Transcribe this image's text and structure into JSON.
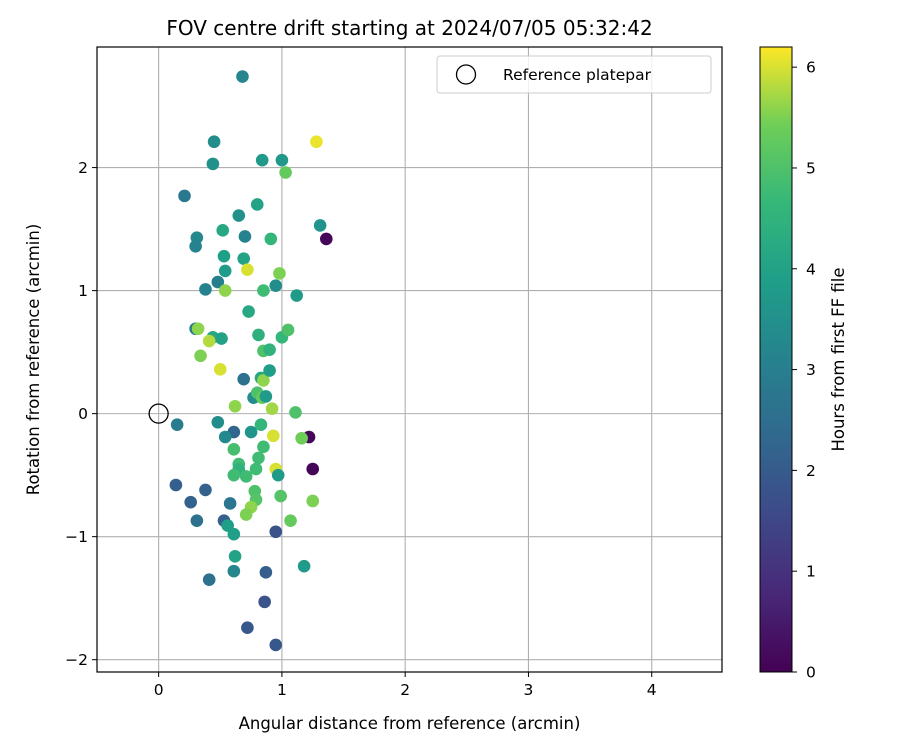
{
  "chart_data": {
    "type": "scatter",
    "title": "FOV centre drift starting at 2024/07/05 05:32:42",
    "xlabel": "Angular distance from reference (arcmin)",
    "ylabel": "Rotation from reference (arcmin)",
    "xlim": [
      -0.5,
      4.57
    ],
    "ylim": [
      -2.1,
      2.98
    ],
    "xticks": [
      0,
      1,
      2,
      3,
      4
    ],
    "yticks": [
      -2,
      -1,
      0,
      1,
      2
    ],
    "grid": true,
    "colormap": "viridis",
    "colorbar": {
      "label": "Hours from first FF file",
      "range": [
        0,
        6.2
      ],
      "ticks": [
        0,
        1,
        2,
        3,
        4,
        5,
        6
      ]
    },
    "legend": {
      "placement": "top-right",
      "entries": [
        {
          "label": "Reference platepar",
          "marker": "open-circle"
        }
      ]
    },
    "reference": {
      "x": 0.0,
      "y": 0.0
    },
    "points": [
      {
        "x": 0.68,
        "y": 2.74,
        "h": 3.2
      },
      {
        "x": 0.45,
        "y": 2.21,
        "h": 3.4
      },
      {
        "x": 1.28,
        "y": 2.21,
        "h": 6.1
      },
      {
        "x": 0.44,
        "y": 2.03,
        "h": 3.5
      },
      {
        "x": 0.84,
        "y": 2.06,
        "h": 3.8
      },
      {
        "x": 1.0,
        "y": 2.06,
        "h": 3.7
      },
      {
        "x": 1.03,
        "y": 1.96,
        "h": 5.3
      },
      {
        "x": 0.21,
        "y": 1.77,
        "h": 2.8
      },
      {
        "x": 0.8,
        "y": 1.7,
        "h": 4.0
      },
      {
        "x": 0.65,
        "y": 1.61,
        "h": 3.5
      },
      {
        "x": 1.31,
        "y": 1.53,
        "h": 3.6
      },
      {
        "x": 0.52,
        "y": 1.49,
        "h": 4.2
      },
      {
        "x": 0.31,
        "y": 1.43,
        "h": 3.3
      },
      {
        "x": 0.7,
        "y": 1.44,
        "h": 3.1
      },
      {
        "x": 0.91,
        "y": 1.42,
        "h": 4.6
      },
      {
        "x": 1.36,
        "y": 1.42,
        "h": 0.1
      },
      {
        "x": 0.3,
        "y": 1.36,
        "h": 3.1
      },
      {
        "x": 0.53,
        "y": 1.28,
        "h": 3.9
      },
      {
        "x": 0.69,
        "y": 1.26,
        "h": 4.0
      },
      {
        "x": 0.54,
        "y": 1.16,
        "h": 3.8
      },
      {
        "x": 0.72,
        "y": 1.17,
        "h": 6.0
      },
      {
        "x": 0.98,
        "y": 1.14,
        "h": 5.5
      },
      {
        "x": 0.48,
        "y": 1.07,
        "h": 3.0
      },
      {
        "x": 0.38,
        "y": 1.01,
        "h": 3.1
      },
      {
        "x": 0.54,
        "y": 1.0,
        "h": 5.6
      },
      {
        "x": 0.85,
        "y": 1.0,
        "h": 4.8
      },
      {
        "x": 0.95,
        "y": 1.04,
        "h": 3.4
      },
      {
        "x": 1.12,
        "y": 0.96,
        "h": 3.8
      },
      {
        "x": 0.73,
        "y": 0.83,
        "h": 4.2
      },
      {
        "x": 0.3,
        "y": 0.69,
        "h": 2.9
      },
      {
        "x": 0.32,
        "y": 0.69,
        "h": 5.6
      },
      {
        "x": 0.44,
        "y": 0.62,
        "h": 4.2
      },
      {
        "x": 0.51,
        "y": 0.61,
        "h": 4.0
      },
      {
        "x": 0.41,
        "y": 0.59,
        "h": 5.8
      },
      {
        "x": 0.81,
        "y": 0.64,
        "h": 4.4
      },
      {
        "x": 1.0,
        "y": 0.62,
        "h": 4.6
      },
      {
        "x": 1.05,
        "y": 0.68,
        "h": 5.0
      },
      {
        "x": 0.34,
        "y": 0.47,
        "h": 5.5
      },
      {
        "x": 0.85,
        "y": 0.51,
        "h": 5.0
      },
      {
        "x": 0.9,
        "y": 0.52,
        "h": 4.5
      },
      {
        "x": 0.5,
        "y": 0.36,
        "h": 6.0
      },
      {
        "x": 0.69,
        "y": 0.28,
        "h": 2.6
      },
      {
        "x": 0.83,
        "y": 0.29,
        "h": 4.2
      },
      {
        "x": 0.85,
        "y": 0.27,
        "h": 5.6
      },
      {
        "x": 0.9,
        "y": 0.35,
        "h": 3.9
      },
      {
        "x": 0.77,
        "y": 0.13,
        "h": 3.4
      },
      {
        "x": 0.8,
        "y": 0.17,
        "h": 5.0
      },
      {
        "x": 0.84,
        "y": 0.13,
        "h": 5.3
      },
      {
        "x": 0.87,
        "y": 0.14,
        "h": 3.8
      },
      {
        "x": 0.62,
        "y": 0.06,
        "h": 5.6
      },
      {
        "x": 0.92,
        "y": 0.04,
        "h": 5.7
      },
      {
        "x": 1.11,
        "y": 0.01,
        "h": 5.0
      },
      {
        "x": 0.15,
        "y": -0.09,
        "h": 2.9
      },
      {
        "x": 0.48,
        "y": -0.07,
        "h": 3.4
      },
      {
        "x": 0.83,
        "y": -0.09,
        "h": 4.6
      },
      {
        "x": 0.61,
        "y": -0.15,
        "h": 2.3
      },
      {
        "x": 0.54,
        "y": -0.19,
        "h": 3.3
      },
      {
        "x": 0.75,
        "y": -0.15,
        "h": 3.6
      },
      {
        "x": 0.93,
        "y": -0.18,
        "h": 6.0
      },
      {
        "x": 1.22,
        "y": -0.19,
        "h": 0.1
      },
      {
        "x": 1.16,
        "y": -0.2,
        "h": 5.4
      },
      {
        "x": 0.61,
        "y": -0.29,
        "h": 4.9
      },
      {
        "x": 0.85,
        "y": -0.27,
        "h": 4.8
      },
      {
        "x": 0.81,
        "y": -0.36,
        "h": 4.8
      },
      {
        "x": 0.65,
        "y": -0.41,
        "h": 4.8
      },
      {
        "x": 0.65,
        "y": -0.45,
        "h": 4.5
      },
      {
        "x": 0.79,
        "y": -0.45,
        "h": 4.8
      },
      {
        "x": 0.95,
        "y": -0.45,
        "h": 6.0
      },
      {
        "x": 1.25,
        "y": -0.45,
        "h": 0.1
      },
      {
        "x": 0.61,
        "y": -0.5,
        "h": 4.8
      },
      {
        "x": 0.71,
        "y": -0.51,
        "h": 4.8
      },
      {
        "x": 0.97,
        "y": -0.5,
        "h": 3.8
      },
      {
        "x": 0.14,
        "y": -0.58,
        "h": 2.1
      },
      {
        "x": 0.38,
        "y": -0.62,
        "h": 2.2
      },
      {
        "x": 0.78,
        "y": -0.63,
        "h": 5.0
      },
      {
        "x": 0.26,
        "y": -0.72,
        "h": 2.2
      },
      {
        "x": 0.58,
        "y": -0.73,
        "h": 2.7
      },
      {
        "x": 0.79,
        "y": -0.7,
        "h": 5.1
      },
      {
        "x": 0.99,
        "y": -0.67,
        "h": 5.1
      },
      {
        "x": 1.25,
        "y": -0.71,
        "h": 5.5
      },
      {
        "x": 0.75,
        "y": -0.76,
        "h": 5.6
      },
      {
        "x": 0.71,
        "y": -0.82,
        "h": 5.5
      },
      {
        "x": 0.31,
        "y": -0.87,
        "h": 2.6
      },
      {
        "x": 0.53,
        "y": -0.87,
        "h": 2.1
      },
      {
        "x": 1.07,
        "y": -0.87,
        "h": 5.3
      },
      {
        "x": 0.56,
        "y": -0.91,
        "h": 3.9
      },
      {
        "x": 0.61,
        "y": -0.98,
        "h": 3.9
      },
      {
        "x": 0.95,
        "y": -0.96,
        "h": 1.8
      },
      {
        "x": 0.62,
        "y": -1.16,
        "h": 4.0
      },
      {
        "x": 1.18,
        "y": -1.24,
        "h": 3.8
      },
      {
        "x": 0.61,
        "y": -1.28,
        "h": 3.2
      },
      {
        "x": 0.87,
        "y": -1.29,
        "h": 2.1
      },
      {
        "x": 0.41,
        "y": -1.35,
        "h": 2.6
      },
      {
        "x": 0.86,
        "y": -1.53,
        "h": 1.8
      },
      {
        "x": 0.72,
        "y": -1.74,
        "h": 1.9
      },
      {
        "x": 0.95,
        "y": -1.88,
        "h": 1.9
      }
    ]
  }
}
